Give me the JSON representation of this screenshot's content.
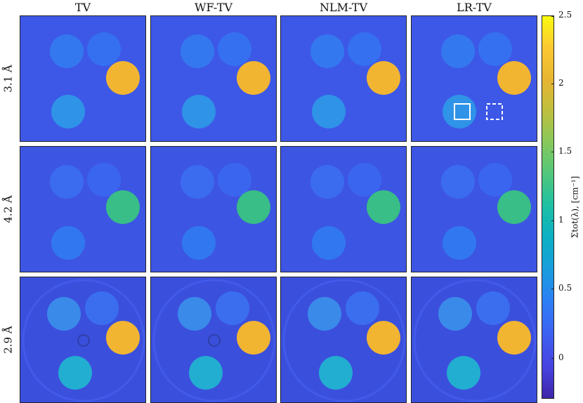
{
  "columns": [
    "TV",
    "WF-TV",
    "NLM-TV",
    "LR-TV"
  ],
  "rows": [
    "3.1 Å",
    "4.2 Å",
    "2.9 Å"
  ],
  "colorbar": {
    "label": "Σtot(λ), [cm⁻¹]",
    "ticks": [
      "2.5",
      "2",
      "1.5",
      "1",
      "0.5",
      "0"
    ],
    "range": [
      -0.35,
      2.5
    ],
    "colormap": "parula"
  },
  "colors": {
    "background_row1": "#3d58e6",
    "background_row2": "#3d55e3",
    "background_row3": "#3b4fdd",
    "disc_hot_row1": "#f2b532",
    "disc_hot_row2": "#38be86",
    "disc_hot_row3": "#f2b532",
    "disc_low_row1": "#2f93e8",
    "disc_low_row2": "#3178f0",
    "disc_low_row3": "#22aed0"
  }
}
